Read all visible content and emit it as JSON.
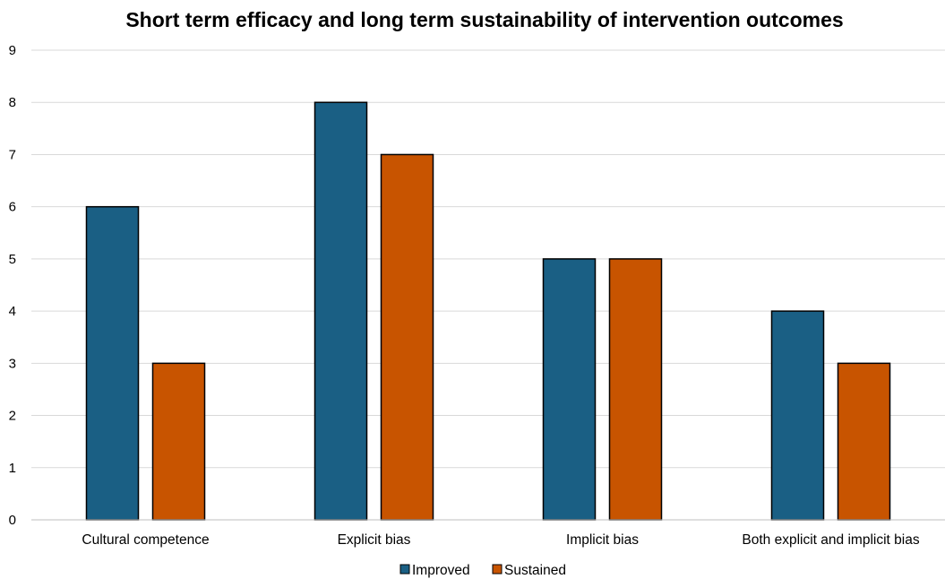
{
  "chart_data": {
    "type": "bar",
    "title": "Short term efficacy and long term sustainability of intervention outcomes",
    "xlabel": "",
    "ylabel": "",
    "categories": [
      "Cultural competence",
      "Explicit bias",
      "Implicit bias",
      "Both explicit and implicit bias"
    ],
    "series": [
      {
        "name": "Improved",
        "values": [
          6,
          8,
          5,
          4
        ],
        "color": "#1a5f84"
      },
      {
        "name": "Sustained",
        "values": [
          3,
          7,
          5,
          3
        ],
        "color": "#c85400"
      }
    ],
    "ylim": [
      0,
      9
    ],
    "yticks": [
      "0",
      "1",
      "2",
      "3",
      "4",
      "5",
      "6",
      "7",
      "8",
      "9"
    ],
    "grid": true,
    "legend_position": "bottom"
  }
}
